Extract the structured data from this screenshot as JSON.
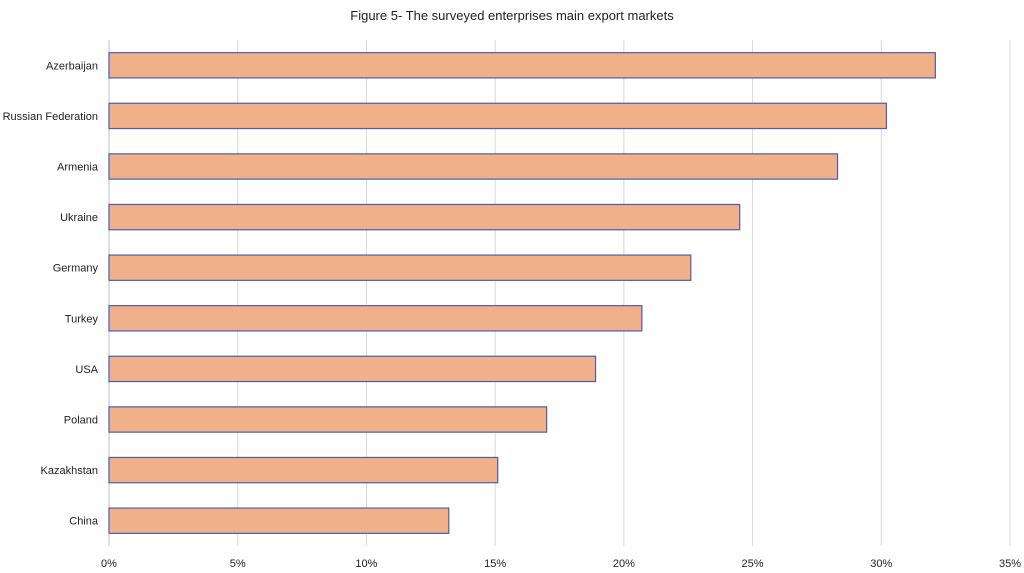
{
  "chart_data": {
    "type": "bar",
    "orientation": "horizontal",
    "title": "Figure 5- The surveyed enterprises main export markets",
    "xlabel": "",
    "ylabel": "",
    "categories": [
      "Azerbaijan",
      "Russian Federation",
      "Armenia",
      "Ukraine",
      "Germany",
      "Turkey",
      "USA",
      "Poland",
      "Kazakhstan",
      "China"
    ],
    "values": [
      32.1,
      30.2,
      28.3,
      24.5,
      22.6,
      20.7,
      18.9,
      17.0,
      15.1,
      13.2
    ],
    "value_unit": "percent",
    "xlim": [
      0,
      35
    ],
    "x_ticks": [
      0,
      5,
      10,
      15,
      20,
      25,
      30,
      35
    ],
    "x_tick_labels": [
      "0%",
      "5%",
      "10%",
      "15%",
      "20%",
      "25%",
      "30%",
      "35%"
    ],
    "grid": true,
    "legend": "none",
    "bar_color": "#f0b08a",
    "bar_border_color": "#4a5fb0"
  }
}
